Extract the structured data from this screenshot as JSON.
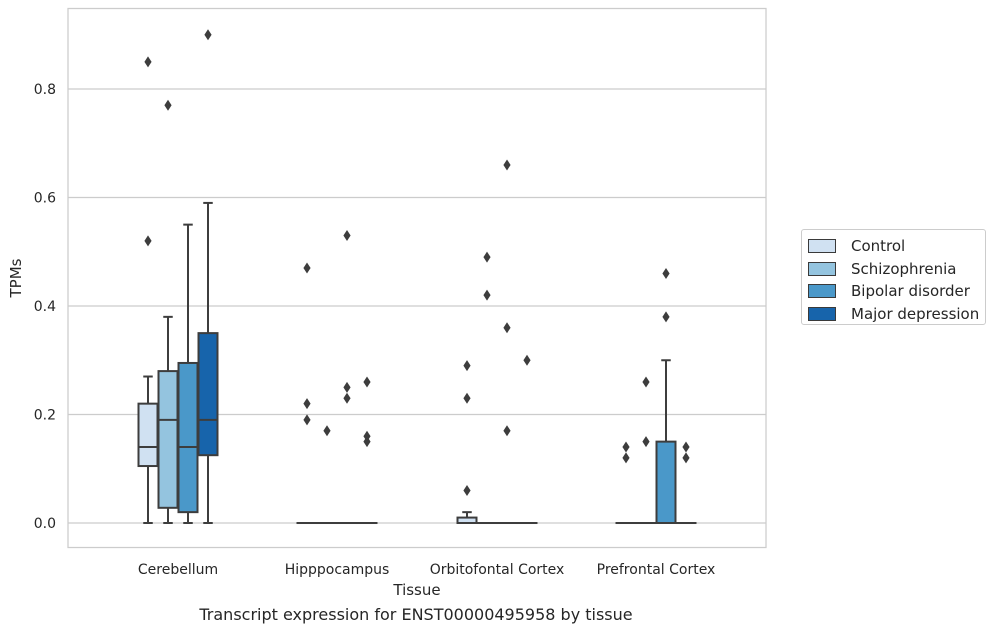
{
  "chart_data": {
    "type": "boxplot",
    "title": "Transcript expression for ENST00000495958 by tissue",
    "xlabel": "Tissue",
    "ylabel": "TPMs",
    "ylim": [
      -0.045,
      0.94
    ],
    "yticks": [
      "0.0",
      "0.2",
      "0.4",
      "0.6",
      "0.8"
    ],
    "ytick_values": [
      0,
      0.2,
      0.4,
      0.6,
      0.8
    ],
    "grid": true,
    "legend_position": "right",
    "categories": [
      "Cerebellum",
      "Hipppocampus",
      "Orbitofontal Cortex",
      "Prefrontal Cortex"
    ],
    "series": [
      {
        "name": "Control",
        "color": "#d0e1f2",
        "boxes": [
          {
            "q1": 0.105,
            "median": 0.14,
            "q3": 0.22,
            "whisker_low": 0.0,
            "whisker_high": 0.27,
            "outliers": [
              0.52,
              0.85
            ]
          },
          {
            "q1": 0.0,
            "median": 0.0,
            "q3": 0.0,
            "whisker_low": 0.0,
            "whisker_high": 0.0,
            "outliers": [
              0.19,
              0.22,
              0.47
            ]
          },
          {
            "q1": 0.0,
            "median": 0.0,
            "q3": 0.01,
            "whisker_low": 0.0,
            "whisker_high": 0.02,
            "outliers": [
              0.06,
              0.23,
              0.29
            ]
          },
          {
            "q1": 0.0,
            "median": 0.0,
            "q3": 0.0,
            "whisker_low": 0.0,
            "whisker_high": 0.0,
            "outliers": [
              0.12,
              0.14
            ]
          }
        ]
      },
      {
        "name": "Schizophrenia",
        "color": "#94c4df",
        "boxes": [
          {
            "q1": 0.028,
            "median": 0.19,
            "q3": 0.28,
            "whisker_low": 0.0,
            "whisker_high": 0.38,
            "outliers": [
              0.77
            ]
          },
          {
            "q1": 0.0,
            "median": 0.0,
            "q3": 0.0,
            "whisker_low": 0.0,
            "whisker_high": 0.0,
            "outliers": [
              0.17
            ]
          },
          {
            "q1": 0.0,
            "median": 0.0,
            "q3": 0.0,
            "whisker_low": 0.0,
            "whisker_high": 0.0,
            "outliers": [
              0.42,
              0.49
            ]
          },
          {
            "q1": 0.0,
            "median": 0.0,
            "q3": 0.0,
            "whisker_low": 0.0,
            "whisker_high": 0.0,
            "outliers": [
              0.15,
              0.26
            ]
          }
        ]
      },
      {
        "name": "Bipolar disorder",
        "color": "#4a98c9",
        "boxes": [
          {
            "q1": 0.02,
            "median": 0.14,
            "q3": 0.295,
            "whisker_low": 0.0,
            "whisker_high": 0.55,
            "outliers": []
          },
          {
            "q1": 0.0,
            "median": 0.0,
            "q3": 0.0,
            "whisker_low": 0.0,
            "whisker_high": 0.0,
            "outliers": [
              0.23,
              0.25,
              0.53
            ]
          },
          {
            "q1": 0.0,
            "median": 0.0,
            "q3": 0.0,
            "whisker_low": 0.0,
            "whisker_high": 0.0,
            "outliers": [
              0.17,
              0.36,
              0.66
            ]
          },
          {
            "q1": 0.0,
            "median": 0.0,
            "q3": 0.15,
            "whisker_low": 0.0,
            "whisker_high": 0.3,
            "outliers": [
              0.38,
              0.46
            ]
          }
        ]
      },
      {
        "name": "Major depression",
        "color": "#1764ab",
        "boxes": [
          {
            "q1": 0.125,
            "median": 0.19,
            "q3": 0.35,
            "whisker_low": 0.0,
            "whisker_high": 0.59,
            "outliers": [
              0.9
            ]
          },
          {
            "q1": 0.0,
            "median": 0.0,
            "q3": 0.0,
            "whisker_low": 0.0,
            "whisker_high": 0.0,
            "outliers": [
              0.15,
              0.16,
              0.26
            ]
          },
          {
            "q1": 0.0,
            "median": 0.0,
            "q3": 0.0,
            "whisker_low": 0.0,
            "whisker_high": 0.0,
            "outliers": [
              0.3
            ]
          },
          {
            "q1": 0.0,
            "median": 0.0,
            "q3": 0.0,
            "whisker_low": 0.0,
            "whisker_high": 0.0,
            "outliers": [
              0.12,
              0.14
            ]
          }
        ]
      }
    ]
  }
}
